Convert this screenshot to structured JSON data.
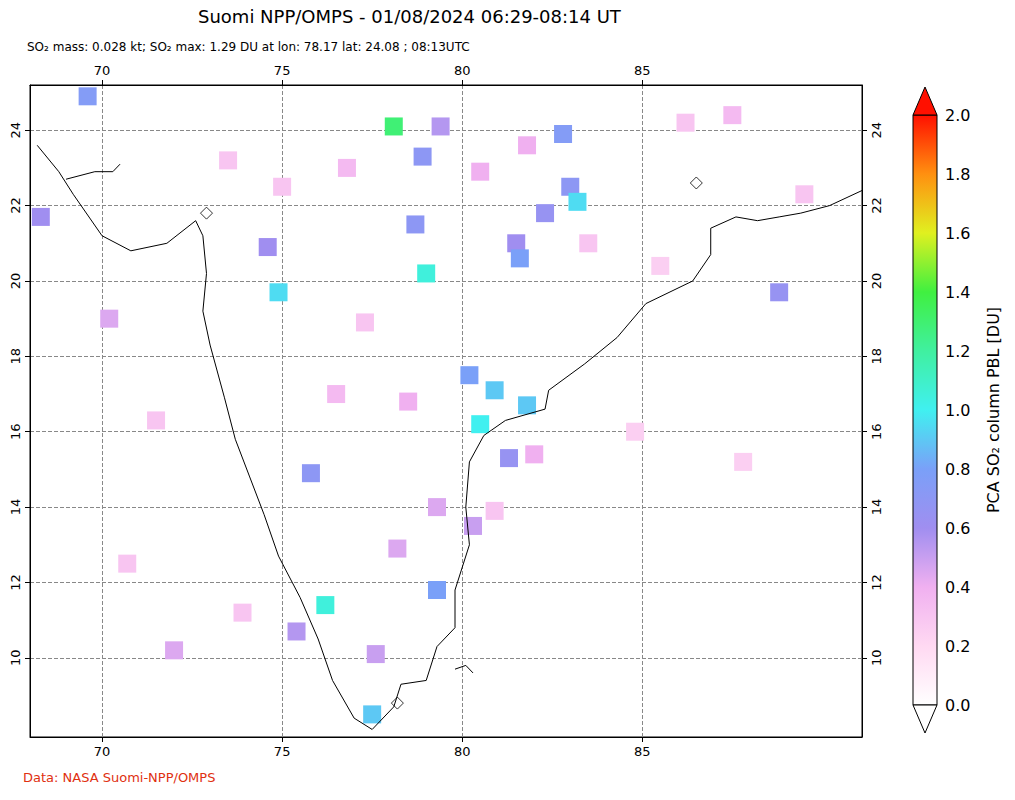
{
  "chart_data": {
    "type": "heatmap",
    "title": "Suomi NPP/OMPS - 01/08/2024 06:29-08:14 UT",
    "subtitle": "SO₂ mass: 0.028 kt; SO₂ max: 1.29 DU at lon: 78.17 lat: 24.08 ; 08:13UTC",
    "source": "Data: NASA Suomi-NPP/OMPS",
    "xlim": [
      68,
      91.1
    ],
    "ylim": [
      7.9,
      25.2
    ],
    "xticks": [
      70,
      75,
      80,
      85
    ],
    "yticks": [
      10,
      12,
      14,
      16,
      18,
      20,
      22,
      24
    ],
    "grid": true,
    "cells": [
      [
        78.1,
        24.1,
        1.29
      ],
      [
        79.4,
        24.1,
        0.55
      ],
      [
        78.9,
        23.3,
        0.7
      ],
      [
        82.8,
        23.9,
        0.75
      ],
      [
        83.0,
        22.5,
        0.7
      ],
      [
        83.2,
        22.1,
        0.95
      ],
      [
        82.3,
        21.8,
        0.65
      ],
      [
        78.7,
        21.5,
        0.7
      ],
      [
        81.5,
        21.0,
        0.6
      ],
      [
        81.6,
        20.6,
        0.8
      ],
      [
        79.0,
        20.2,
        1.05
      ],
      [
        74.9,
        19.7,
        0.95
      ],
      [
        80.2,
        17.5,
        0.8
      ],
      [
        80.9,
        17.1,
        0.9
      ],
      [
        81.8,
        16.7,
        0.9
      ],
      [
        80.5,
        16.2,
        1.0
      ],
      [
        81.3,
        15.3,
        0.65
      ],
      [
        75.8,
        14.9,
        0.7
      ],
      [
        76.2,
        11.4,
        1.05
      ],
      [
        79.3,
        11.8,
        0.8
      ],
      [
        88.8,
        19.7,
        0.65
      ],
      [
        69.6,
        24.9,
        0.75
      ],
      [
        77.5,
        8.5,
        0.9
      ],
      [
        80.3,
        13.5,
        0.5
      ],
      [
        77.6,
        10.1,
        0.5
      ],
      [
        75.4,
        10.7,
        0.55
      ],
      [
        74.6,
        20.9,
        0.6
      ],
      [
        68.3,
        21.7,
        0.6
      ],
      [
        79.3,
        14.0,
        0.45
      ],
      [
        78.2,
        12.9,
        0.45
      ],
      [
        70.2,
        19.0,
        0.45
      ],
      [
        72.0,
        10.2,
        0.45
      ],
      [
        80.9,
        13.9,
        0.3
      ],
      [
        82.0,
        15.4,
        0.4
      ],
      [
        76.5,
        17.0,
        0.35
      ],
      [
        73.5,
        23.2,
        0.3
      ],
      [
        86.2,
        24.2,
        0.3
      ],
      [
        87.5,
        24.4,
        0.35
      ],
      [
        89.5,
        22.3,
        0.3
      ],
      [
        71.5,
        16.3,
        0.3
      ],
      [
        84.8,
        16.0,
        0.25
      ],
      [
        70.7,
        12.5,
        0.3
      ],
      [
        83.5,
        21.0,
        0.3
      ],
      [
        76.8,
        23.0,
        0.35
      ],
      [
        75.0,
        22.5,
        0.3
      ],
      [
        77.3,
        18.9,
        0.3
      ],
      [
        78.5,
        16.8,
        0.4
      ],
      [
        73.9,
        11.2,
        0.3
      ],
      [
        87.8,
        15.2,
        0.25
      ],
      [
        85.5,
        20.4,
        0.25
      ],
      [
        80.5,
        22.9,
        0.4
      ],
      [
        81.8,
        23.6,
        0.4
      ]
    ],
    "coastlines": [
      [
        [
          68.2,
          23.6
        ],
        [
          68.8,
          22.9
        ],
        [
          69.2,
          22.3
        ],
        [
          70.0,
          21.2
        ],
        [
          70.8,
          20.8
        ],
        [
          71.8,
          21.0
        ],
        [
          72.6,
          21.6
        ],
        [
          72.8,
          21.2
        ],
        [
          72.9,
          20.2
        ],
        [
          72.8,
          19.2
        ],
        [
          73.0,
          18.3
        ],
        [
          73.4,
          16.9
        ],
        [
          73.7,
          15.8
        ],
        [
          74.1,
          14.8
        ],
        [
          74.5,
          13.8
        ],
        [
          74.9,
          12.7
        ],
        [
          75.5,
          11.6
        ],
        [
          76.0,
          10.5
        ],
        [
          76.4,
          9.4
        ],
        [
          77.0,
          8.4
        ],
        [
          77.5,
          8.1
        ],
        [
          78.1,
          8.7
        ],
        [
          78.3,
          9.3
        ],
        [
          79.0,
          9.4
        ],
        [
          79.3,
          10.3
        ],
        [
          79.8,
          10.8
        ],
        [
          79.8,
          11.8
        ],
        [
          80.2,
          13.0
        ],
        [
          80.1,
          14.0
        ],
        [
          80.2,
          15.2
        ],
        [
          80.6,
          15.9
        ],
        [
          81.2,
          16.3
        ],
        [
          82.3,
          16.6
        ],
        [
          82.4,
          17.1
        ],
        [
          83.4,
          17.8
        ],
        [
          84.3,
          18.5
        ],
        [
          85.1,
          19.4
        ],
        [
          86.4,
          20.0
        ],
        [
          86.9,
          20.7
        ],
        [
          86.9,
          21.4
        ],
        [
          87.6,
          21.7
        ],
        [
          88.2,
          21.6
        ],
        [
          88.8,
          21.7
        ],
        [
          89.4,
          21.8
        ],
        [
          90.2,
          22.0
        ],
        [
          91.1,
          22.4
        ]
      ],
      [
        [
          69.0,
          22.7
        ],
        [
          69.8,
          22.9
        ],
        [
          70.3,
          22.9
        ],
        [
          70.5,
          23.1
        ]
      ],
      [
        [
          79.8,
          9.7
        ],
        [
          80.1,
          9.8
        ],
        [
          80.3,
          9.6
        ]
      ]
    ],
    "markers": [
      [
        86.5,
        22.6
      ],
      [
        72.9,
        21.8
      ],
      [
        78.2,
        8.8
      ]
    ],
    "marker": "diamond",
    "colorbar": {
      "label": "PCA SO₂ column PBL [DU]",
      "range": [
        0,
        2
      ],
      "ticks": [
        {
          "value": 0,
          "label": "0.0"
        },
        {
          "value": 0.2,
          "label": "0.2"
        },
        {
          "value": 0.4,
          "label": "0.4"
        },
        {
          "value": 0.6,
          "label": "0.6"
        },
        {
          "value": 0.8,
          "label": "0.8"
        },
        {
          "value": 1,
          "label": "1.0"
        },
        {
          "value": 1.2,
          "label": "1.2"
        },
        {
          "value": 1.4,
          "label": "1.4"
        },
        {
          "value": 1.6,
          "label": "1.6"
        },
        {
          "value": 1.8,
          "label": "1.8"
        },
        {
          "value": 2,
          "label": "2.0"
        }
      ]
    }
  }
}
